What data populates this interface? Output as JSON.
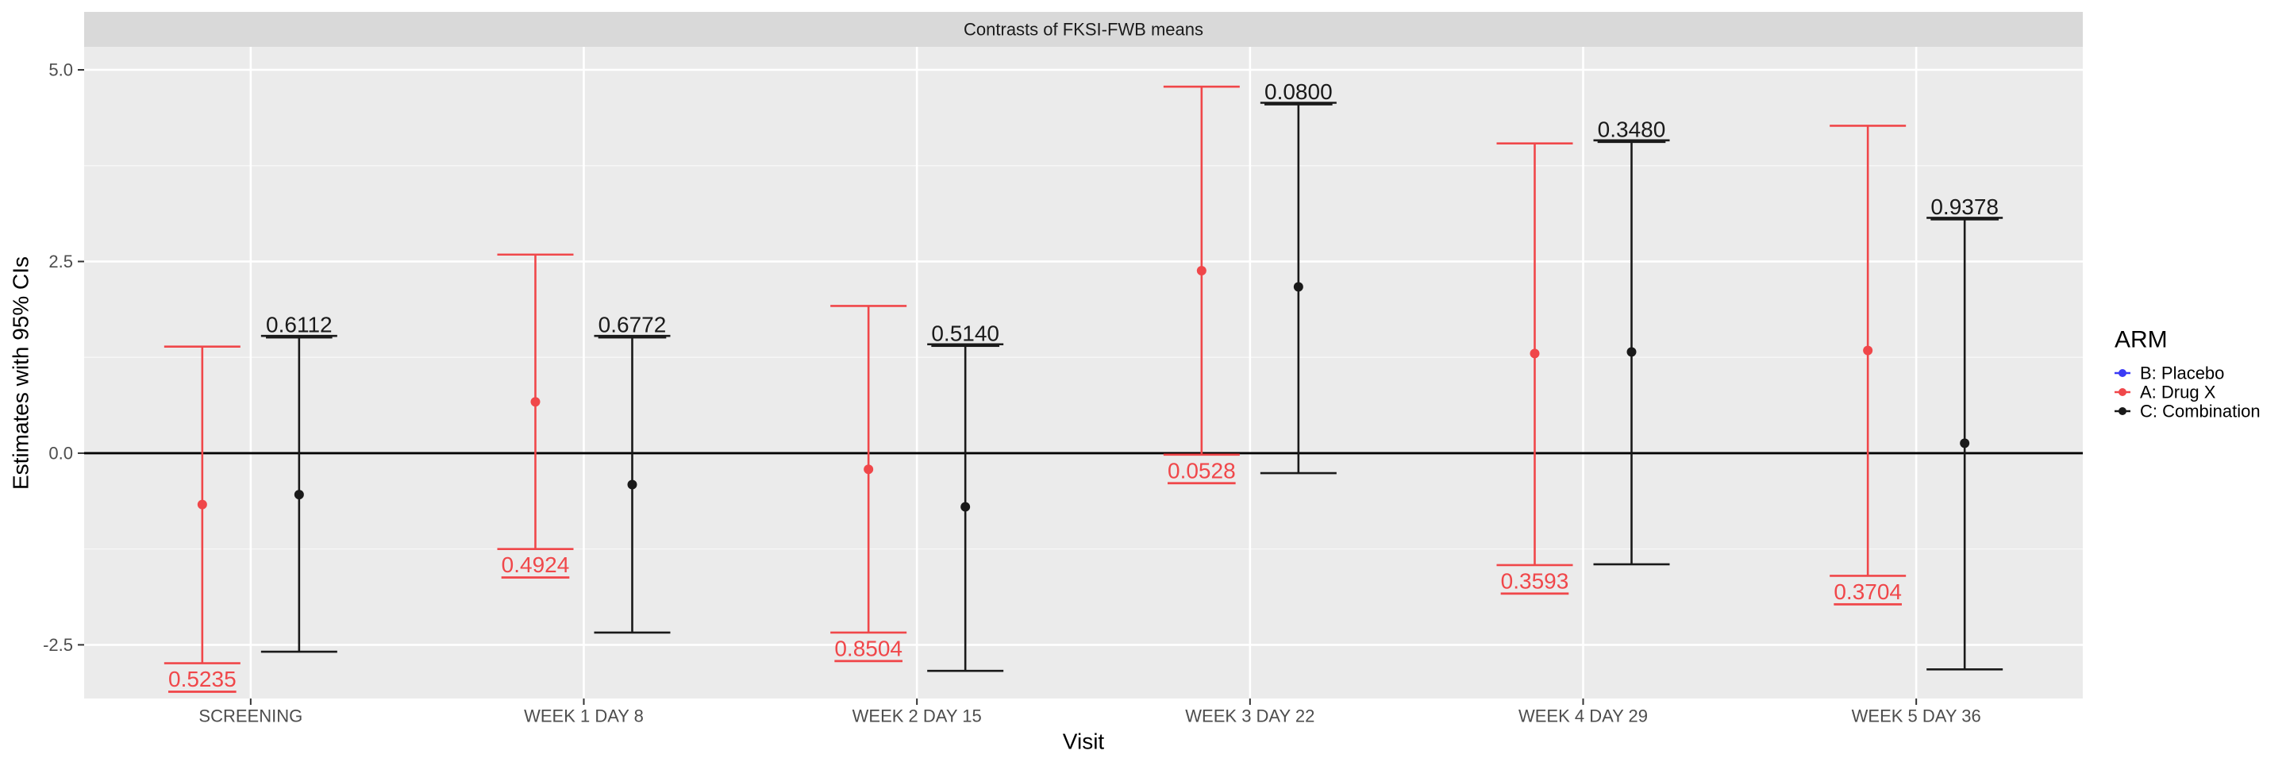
{
  "chart_data": {
    "type": "errorbar",
    "title": "Contrasts of FKSI-FWB means",
    "xlabel": "Visit",
    "ylabel": "Estimates with 95% CIs",
    "ylim": [
      -3.2,
      5.3
    ],
    "yticks": [
      -2.5,
      0.0,
      2.5,
      5.0
    ],
    "ytick_labels": [
      "-2.5",
      "0.0",
      "2.5",
      "5.0"
    ],
    "grid": true,
    "reference_line": 0,
    "legend_position": "right",
    "legend_title": "ARM",
    "legend": [
      {
        "label": "B: Placebo",
        "color": "#3b3bf5"
      },
      {
        "label": "A: Drug X",
        "color": "#f0474a"
      },
      {
        "label": "C: Combination",
        "color": "#1a1a1a"
      }
    ],
    "categories": [
      "SCREENING",
      "WEEK 1 DAY 8",
      "WEEK 2 DAY 15",
      "WEEK 3 DAY 22",
      "WEEK 4 DAY 29",
      "WEEK 5 DAY 36"
    ],
    "series": [
      {
        "name": "A: Drug X",
        "color": "#f0474a",
        "estimate": [
          -0.67,
          0.67,
          -0.21,
          2.38,
          1.3,
          1.34
        ],
        "lower": [
          -2.74,
          -1.25,
          -2.34,
          -0.02,
          -1.46,
          -1.6
        ],
        "upper": [
          1.39,
          2.59,
          1.92,
          4.78,
          4.04,
          4.27
        ],
        "p_values": [
          "0.5235",
          "0.4924",
          "0.8504",
          "0.0528",
          "0.3593",
          "0.3704"
        ]
      },
      {
        "name": "C: Combination",
        "color": "#1a1a1a",
        "estimate": [
          -0.54,
          -0.41,
          -0.7,
          2.17,
          1.32,
          0.13
        ],
        "lower": [
          -2.59,
          -2.34,
          -2.84,
          -0.26,
          -1.45,
          -2.82
        ],
        "upper": [
          1.53,
          1.53,
          1.42,
          4.57,
          4.08,
          3.07
        ],
        "p_values": [
          "0.6112",
          "0.6772",
          "0.5140",
          "0.0800",
          "0.3480",
          "0.9378"
        ]
      }
    ]
  }
}
